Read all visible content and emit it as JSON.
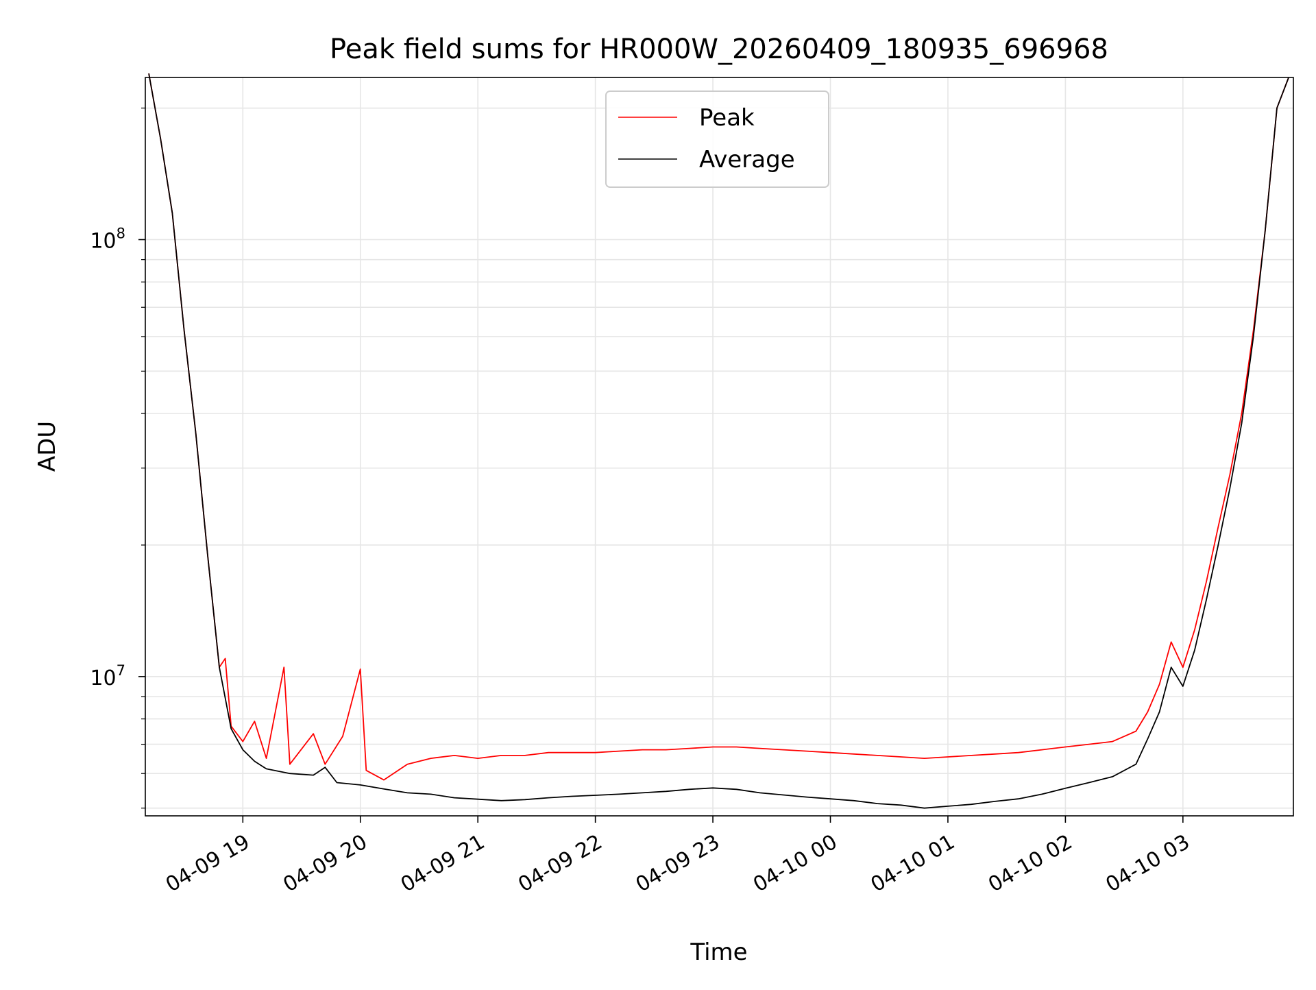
{
  "chart_data": {
    "type": "line",
    "title": "Peak field sums for HR000W_20260409_180935_696968",
    "xlabel": "Time",
    "ylabel": "ADU",
    "yscale": "log",
    "ylim": [
      4800000,
      235000000
    ],
    "x_units": "hours since 2026-04-09 00:00",
    "xlim": [
      18.17,
      27.94
    ],
    "x_ticks": [
      {
        "value": 19,
        "label": "04-09 19"
      },
      {
        "value": 20,
        "label": "04-09 20"
      },
      {
        "value": 21,
        "label": "04-09 21"
      },
      {
        "value": 22,
        "label": "04-09 22"
      },
      {
        "value": 23,
        "label": "04-09 23"
      },
      {
        "value": 24,
        "label": "04-10 00"
      },
      {
        "value": 25,
        "label": "04-10 01"
      },
      {
        "value": 26,
        "label": "04-10 02"
      },
      {
        "value": 27,
        "label": "04-10 03"
      }
    ],
    "y_ticks": [
      {
        "value": 10000000,
        "base": "10",
        "exp": "7"
      },
      {
        "value": 100000000,
        "base": "10",
        "exp": "8"
      }
    ],
    "grid": true,
    "legend": {
      "position": "top-center",
      "entries": [
        {
          "label": "Peak",
          "color": "#ff0000"
        },
        {
          "label": "Average",
          "color": "#000000"
        }
      ]
    },
    "series": [
      {
        "name": "Average",
        "color": "#000000",
        "points": [
          [
            18.2,
            240000000
          ],
          [
            18.3,
            170000000
          ],
          [
            18.4,
            115000000
          ],
          [
            18.5,
            62000000
          ],
          [
            18.6,
            36000000
          ],
          [
            18.7,
            19000000
          ],
          [
            18.8,
            10500000
          ],
          [
            18.9,
            7600000
          ],
          [
            19.0,
            6800000
          ],
          [
            19.1,
            6400000
          ],
          [
            19.2,
            6150000
          ],
          [
            19.4,
            6000000
          ],
          [
            19.6,
            5950000
          ],
          [
            19.7,
            6200000
          ],
          [
            19.8,
            5720000
          ],
          [
            20.0,
            5650000
          ],
          [
            20.2,
            5530000
          ],
          [
            20.4,
            5420000
          ],
          [
            20.6,
            5380000
          ],
          [
            20.8,
            5280000
          ],
          [
            21.0,
            5240000
          ],
          [
            21.2,
            5200000
          ],
          [
            21.4,
            5230000
          ],
          [
            21.6,
            5280000
          ],
          [
            21.8,
            5320000
          ],
          [
            22.0,
            5350000
          ],
          [
            22.2,
            5380000
          ],
          [
            22.4,
            5420000
          ],
          [
            22.6,
            5460000
          ],
          [
            22.8,
            5520000
          ],
          [
            23.0,
            5560000
          ],
          [
            23.2,
            5520000
          ],
          [
            23.4,
            5420000
          ],
          [
            23.6,
            5360000
          ],
          [
            23.8,
            5300000
          ],
          [
            24.0,
            5250000
          ],
          [
            24.2,
            5200000
          ],
          [
            24.4,
            5120000
          ],
          [
            24.6,
            5080000
          ],
          [
            24.8,
            5000000
          ],
          [
            25.0,
            5050000
          ],
          [
            25.2,
            5100000
          ],
          [
            25.4,
            5180000
          ],
          [
            25.6,
            5250000
          ],
          [
            25.8,
            5380000
          ],
          [
            26.0,
            5550000
          ],
          [
            26.2,
            5720000
          ],
          [
            26.4,
            5900000
          ],
          [
            26.6,
            6300000
          ],
          [
            26.7,
            7200000
          ],
          [
            26.8,
            8300000
          ],
          [
            26.9,
            10500000
          ],
          [
            27.0,
            9500000
          ],
          [
            27.1,
            11500000
          ],
          [
            27.2,
            15000000
          ],
          [
            27.3,
            20000000
          ],
          [
            27.4,
            27000000
          ],
          [
            27.5,
            38000000
          ],
          [
            27.6,
            60000000
          ],
          [
            27.7,
            105000000
          ],
          [
            27.8,
            200000000
          ],
          [
            27.9,
            235000000
          ]
        ]
      },
      {
        "name": "Peak",
        "color": "#ff0000",
        "points": [
          [
            18.2,
            240000000
          ],
          [
            18.3,
            170000000
          ],
          [
            18.4,
            115000000
          ],
          [
            18.5,
            62000000
          ],
          [
            18.6,
            36000000
          ],
          [
            18.7,
            19000000
          ],
          [
            18.8,
            10500000
          ],
          [
            18.85,
            11000000
          ],
          [
            18.9,
            7700000
          ],
          [
            19.0,
            7100000
          ],
          [
            19.1,
            7900000
          ],
          [
            19.2,
            6500000
          ],
          [
            19.35,
            10500000
          ],
          [
            19.4,
            6300000
          ],
          [
            19.6,
            7400000
          ],
          [
            19.7,
            6300000
          ],
          [
            19.85,
            7300000
          ],
          [
            20.0,
            10400000
          ],
          [
            20.05,
            6100000
          ],
          [
            20.2,
            5800000
          ],
          [
            20.4,
            6300000
          ],
          [
            20.6,
            6500000
          ],
          [
            20.8,
            6600000
          ],
          [
            21.0,
            6500000
          ],
          [
            21.2,
            6600000
          ],
          [
            21.4,
            6600000
          ],
          [
            21.6,
            6700000
          ],
          [
            21.8,
            6700000
          ],
          [
            22.0,
            6700000
          ],
          [
            22.2,
            6750000
          ],
          [
            22.4,
            6800000
          ],
          [
            22.6,
            6800000
          ],
          [
            22.8,
            6850000
          ],
          [
            23.0,
            6900000
          ],
          [
            23.2,
            6900000
          ],
          [
            23.4,
            6850000
          ],
          [
            23.6,
            6800000
          ],
          [
            23.8,
            6750000
          ],
          [
            24.0,
            6700000
          ],
          [
            24.2,
            6650000
          ],
          [
            24.4,
            6600000
          ],
          [
            24.6,
            6550000
          ],
          [
            24.8,
            6500000
          ],
          [
            25.0,
            6550000
          ],
          [
            25.2,
            6600000
          ],
          [
            25.4,
            6650000
          ],
          [
            25.6,
            6700000
          ],
          [
            25.8,
            6800000
          ],
          [
            26.0,
            6900000
          ],
          [
            26.2,
            7000000
          ],
          [
            26.4,
            7100000
          ],
          [
            26.6,
            7500000
          ],
          [
            26.7,
            8300000
          ],
          [
            26.8,
            9600000
          ],
          [
            26.9,
            12000000
          ],
          [
            27.0,
            10500000
          ],
          [
            27.1,
            12800000
          ],
          [
            27.2,
            16500000
          ],
          [
            27.3,
            22000000
          ],
          [
            27.4,
            29000000
          ],
          [
            27.5,
            40000000
          ],
          [
            27.6,
            62000000
          ],
          [
            27.7,
            105000000
          ],
          [
            27.8,
            200000000
          ],
          [
            27.9,
            235000000
          ]
        ]
      }
    ]
  }
}
